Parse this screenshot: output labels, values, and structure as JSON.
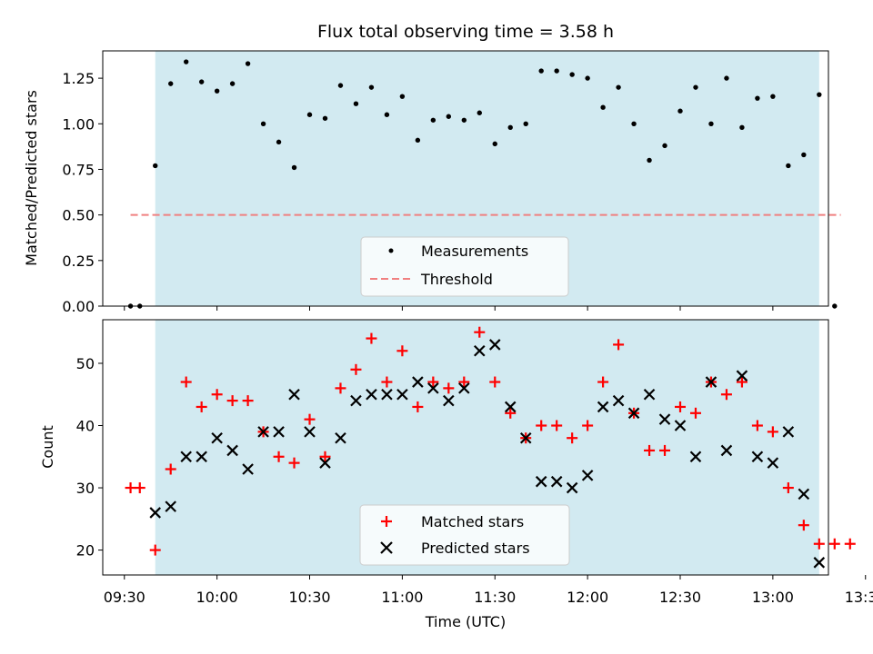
{
  "chart_data": [
    {
      "type": "scatter",
      "title": "Flux total observing time = 3.58 h",
      "ylabel": "Matched/Predicted stars",
      "xlabel": "",
      "ylim": [
        0,
        1.4
      ],
      "yticks": [
        0.0,
        0.25,
        0.5,
        0.75,
        1.0,
        1.25
      ],
      "ytick_labels": [
        "0.00",
        "0.25",
        "0.50",
        "0.75",
        "1.00",
        "1.25"
      ],
      "time_unit": "minutes since 09:00 UTC",
      "xlim": [
        23,
        258
      ],
      "observing_window": [
        40,
        255
      ],
      "threshold": {
        "value": 0.5,
        "x_range": [
          32,
          262
        ],
        "color": "#f08080"
      },
      "series": [
        {
          "name": "Measurements",
          "marker": "dot",
          "color": "#000000",
          "x": [
            32,
            35,
            40,
            45,
            50,
            55,
            60,
            65,
            70,
            75,
            80,
            85,
            90,
            95,
            100,
            105,
            110,
            115,
            120,
            125,
            130,
            135,
            140,
            145,
            150,
            155,
            160,
            165,
            170,
            175,
            180,
            185,
            190,
            195,
            200,
            205,
            210,
            215,
            220,
            225,
            230,
            235,
            240,
            245,
            250,
            255,
            260
          ],
          "values": [
            0.0,
            0.0,
            0.77,
            1.22,
            1.34,
            1.23,
            1.18,
            1.22,
            1.33,
            1.0,
            0.9,
            0.76,
            1.05,
            1.03,
            1.21,
            1.11,
            1.2,
            1.05,
            1.15,
            0.91,
            1.02,
            1.04,
            1.02,
            1.06,
            0.89,
            0.98,
            1.0,
            1.29,
            1.29,
            1.27,
            1.25,
            1.09,
            1.2,
            1.0,
            0.8,
            0.88,
            1.07,
            1.2,
            1.0,
            1.25,
            0.98,
            1.14,
            1.15,
            0.77,
            0.83,
            1.16,
            0.0
          ]
        }
      ],
      "legend": {
        "position": "lower-center",
        "entries": [
          "Measurements",
          "Threshold"
        ]
      }
    },
    {
      "type": "scatter",
      "title": "",
      "xlabel": "Time (UTC)",
      "ylabel": "Count",
      "ylim": [
        16,
        57
      ],
      "yticks": [
        20,
        30,
        40,
        50
      ],
      "ytick_labels": [
        "20",
        "30",
        "40",
        "50"
      ],
      "xlim": [
        23,
        258
      ],
      "xticks": [
        30,
        60,
        90,
        120,
        150,
        180,
        210,
        240,
        270
      ],
      "xtick_labels": [
        "09:30",
        "10:00",
        "10:30",
        "11:00",
        "11:30",
        "12:00",
        "12:30",
        "13:00",
        "13:30"
      ],
      "observing_window": [
        40,
        255
      ],
      "series": [
        {
          "name": "Matched stars",
          "marker": "plus",
          "color": "#ff0000",
          "x": [
            32,
            35,
            40,
            45,
            50,
            55,
            60,
            65,
            70,
            75,
            80,
            85,
            90,
            95,
            100,
            105,
            110,
            115,
            120,
            125,
            130,
            135,
            140,
            145,
            150,
            155,
            160,
            165,
            170,
            175,
            180,
            185,
            190,
            195,
            200,
            205,
            210,
            215,
            220,
            225,
            230,
            235,
            240,
            245,
            250,
            255,
            260,
            265
          ],
          "values": [
            30,
            30,
            20,
            33,
            47,
            43,
            45,
            44,
            44,
            39,
            35,
            34,
            41,
            35,
            46,
            49,
            54,
            47,
            52,
            43,
            47,
            46,
            47,
            55,
            47,
            42,
            38,
            40,
            40,
            38,
            40,
            47,
            53,
            42,
            36,
            36,
            43,
            42,
            47,
            45,
            47,
            40,
            39,
            30,
            24,
            21,
            21,
            21
          ]
        },
        {
          "name": "Predicted stars",
          "marker": "x",
          "color": "#000000",
          "x": [
            40,
            45,
            50,
            55,
            60,
            65,
            70,
            75,
            80,
            85,
            90,
            95,
            100,
            105,
            110,
            115,
            120,
            125,
            130,
            135,
            140,
            145,
            150,
            155,
            160,
            165,
            170,
            175,
            180,
            185,
            190,
            195,
            200,
            205,
            210,
            215,
            220,
            225,
            230,
            235,
            240,
            245,
            250,
            255
          ],
          "values": [
            26,
            27,
            35,
            35,
            38,
            36,
            33,
            39,
            39,
            45,
            39,
            34,
            38,
            44,
            45,
            45,
            45,
            47,
            46,
            44,
            46,
            52,
            53,
            43,
            38,
            31,
            31,
            30,
            32,
            43,
            44,
            42,
            45,
            41,
            40,
            35,
            47,
            36,
            48,
            35,
            34,
            39,
            29,
            18
          ]
        }
      ],
      "legend": {
        "position": "lower-center",
        "entries": [
          "Matched stars",
          "Predicted stars"
        ]
      }
    }
  ]
}
